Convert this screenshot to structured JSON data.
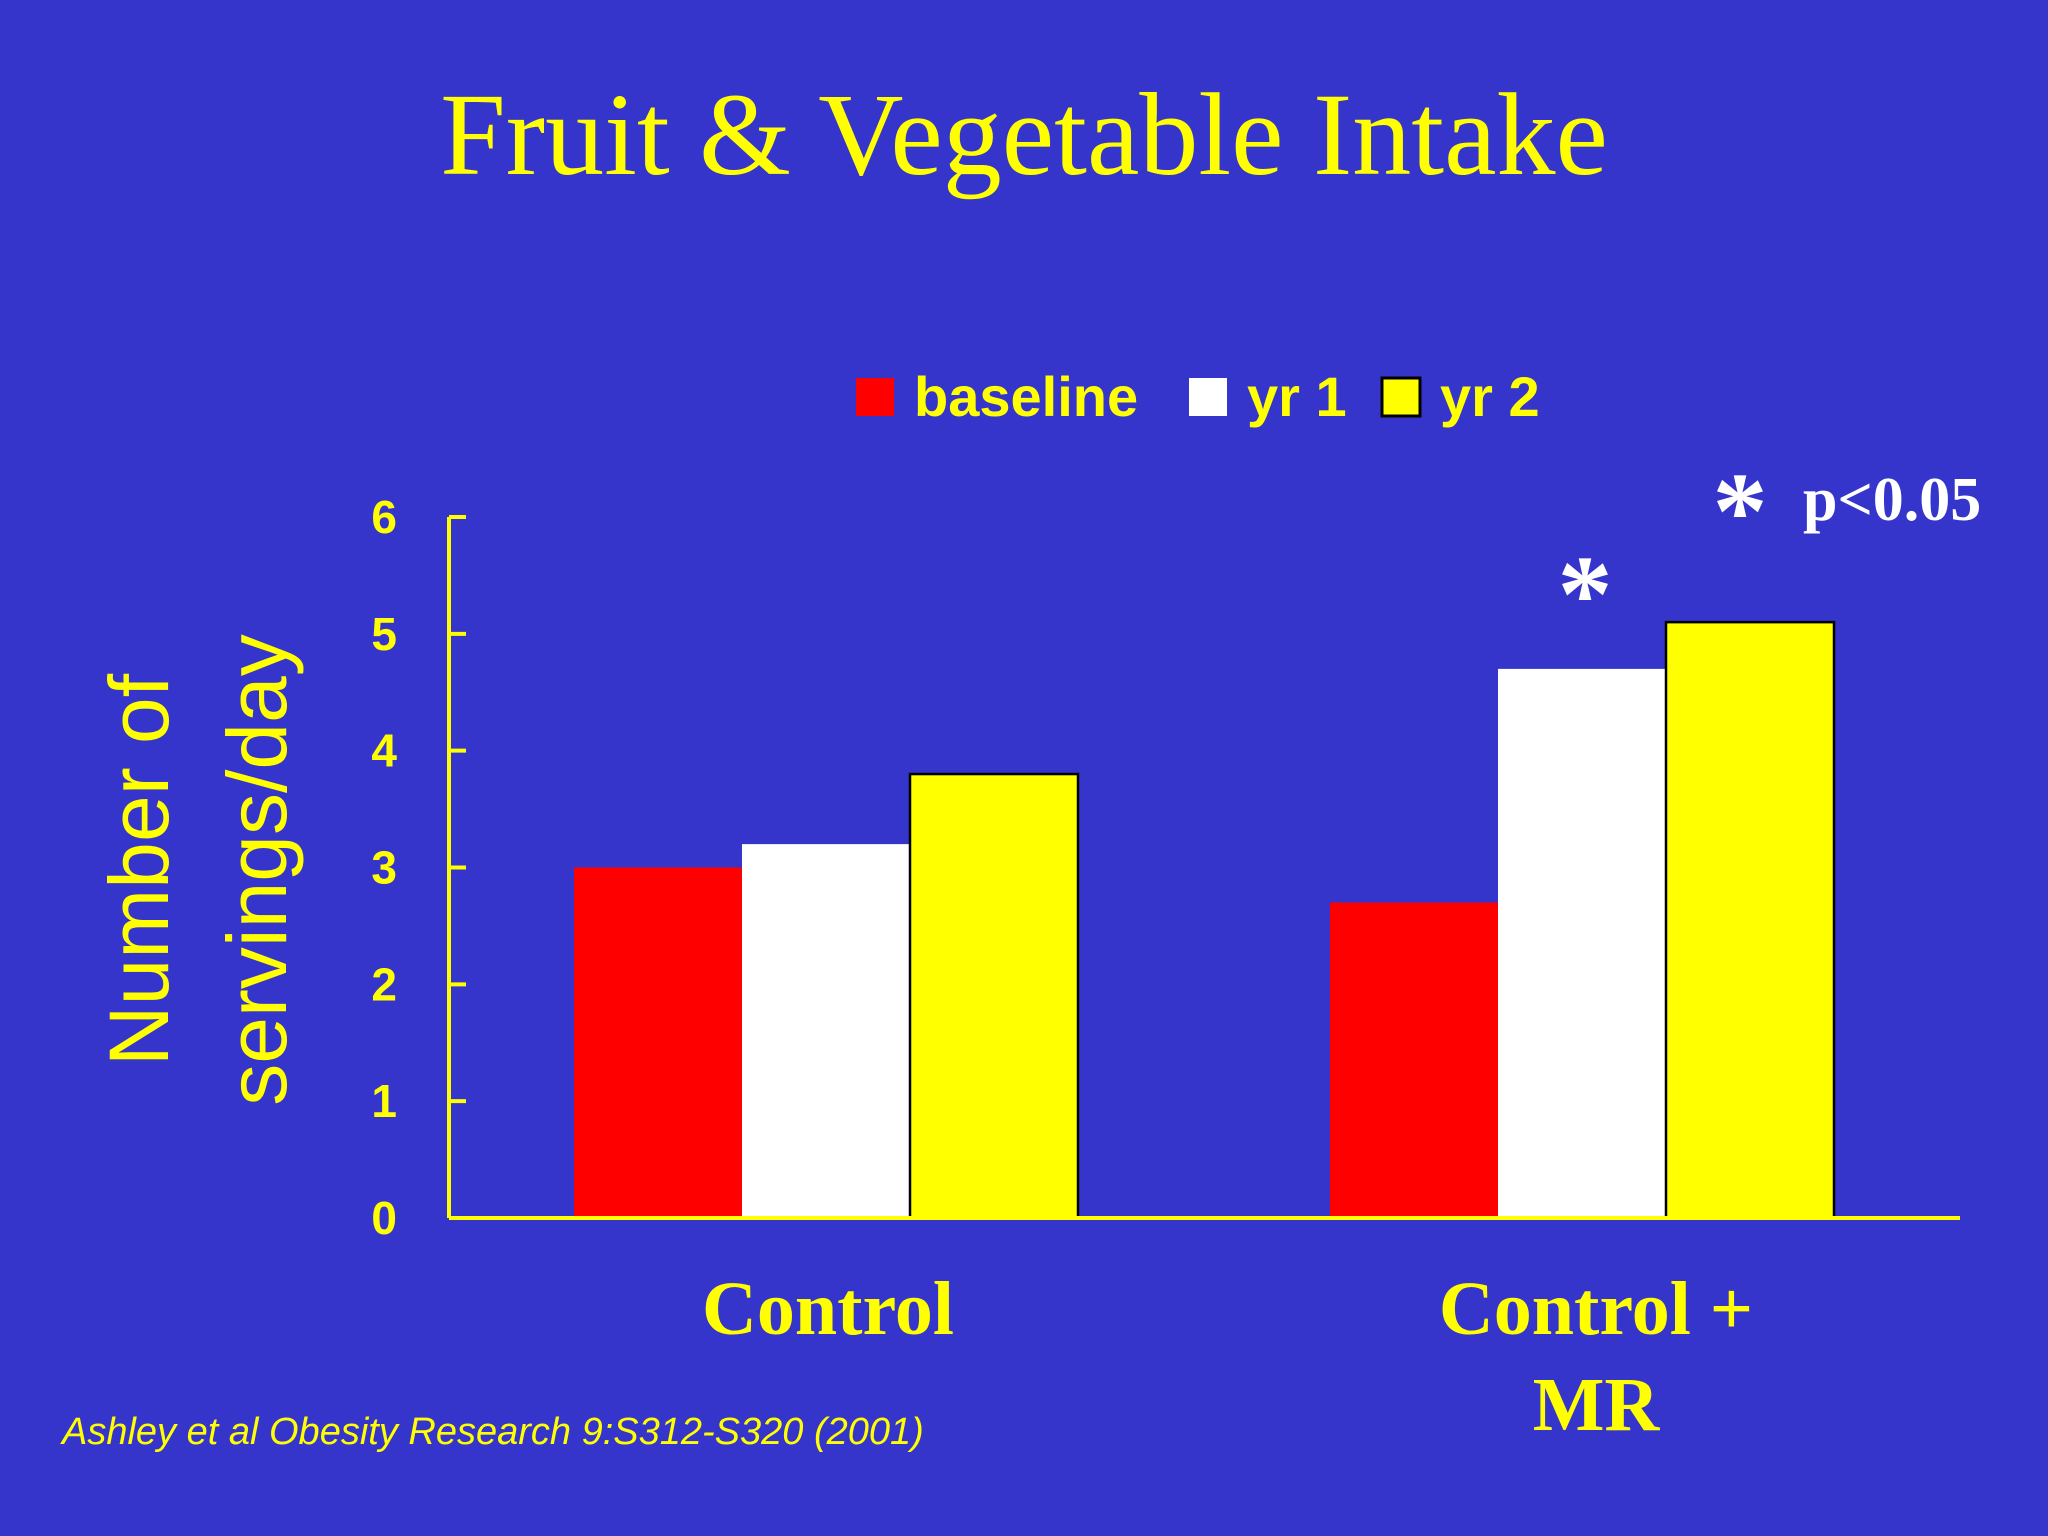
{
  "slide": {
    "title": "Fruit & Vegetable Intake",
    "citation": "Ashley et al  Obesity Research 9:S312-S320 (2001)",
    "significance_marker": "*",
    "significance_note": "p<0.05",
    "colors": {
      "background": "#3535cc",
      "text": "#ffff00",
      "axis": "#ffff00",
      "annotation": "#ffffff"
    }
  },
  "chart_data": {
    "type": "bar",
    "title": "",
    "ylabel_lines": [
      "Number of",
      "servings/day"
    ],
    "xlabel": "",
    "ylim": [
      0,
      6
    ],
    "yticks": [
      "0",
      "1",
      "2",
      "3",
      "4",
      "5",
      "6"
    ],
    "legend_position": "top",
    "categories": [
      {
        "lines": [
          "Control"
        ]
      },
      {
        "lines": [
          "Control +",
          "MR"
        ]
      }
    ],
    "series": [
      {
        "name": "baseline",
        "color": "#ff0000",
        "values": [
          3.0,
          2.7
        ]
      },
      {
        "name": "yr 1",
        "color": "#ffffff",
        "values": [
          3.2,
          4.7
        ]
      },
      {
        "name": "yr 2",
        "color": "#ffff00",
        "values": [
          3.8,
          5.1
        ]
      }
    ],
    "significance": [
      {
        "category_index": 1,
        "series_index": 1,
        "label": "*"
      }
    ]
  }
}
